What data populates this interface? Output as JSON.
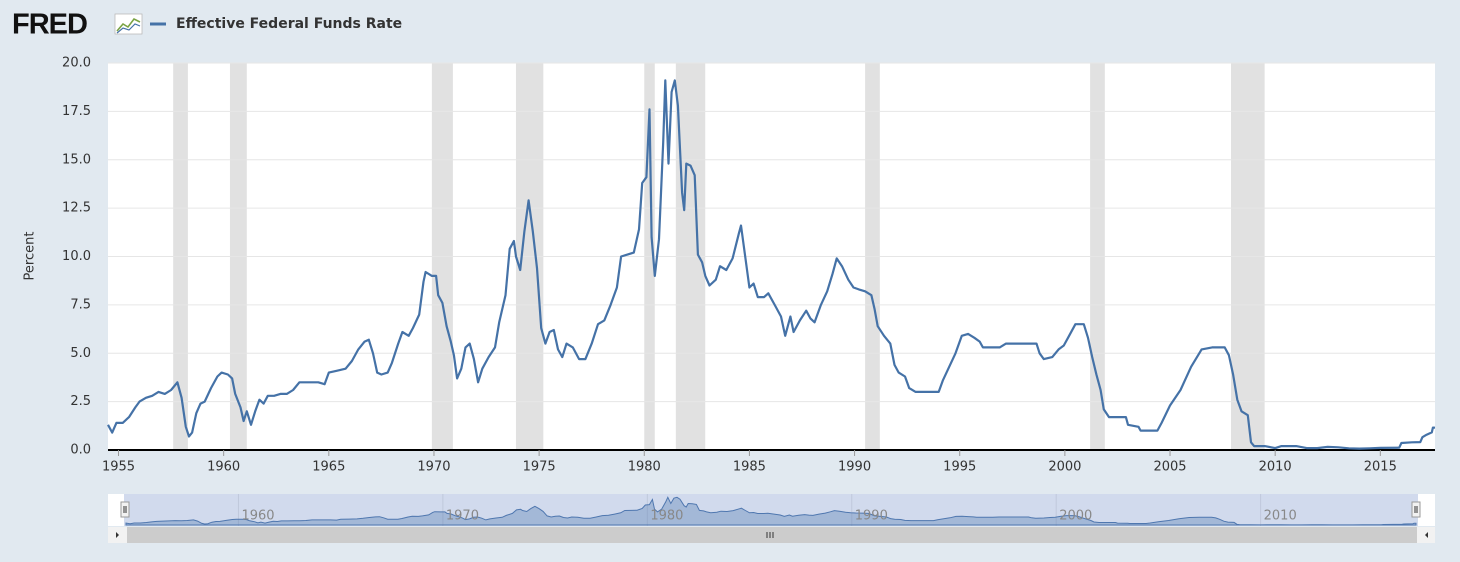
{
  "logo": "FRED",
  "chart_data": {
    "type": "line",
    "y_label": "Percent",
    "xlim": [
      1954.5,
      2017.6
    ],
    "ylim": [
      0,
      20
    ],
    "xticks": [
      1955,
      1960,
      1965,
      1970,
      1975,
      1980,
      1985,
      1990,
      1995,
      2000,
      2005,
      2010,
      2015
    ],
    "yticks": [
      {
        "value": 0,
        "label": "0.0"
      },
      2.5,
      {
        "value": 5,
        "label": "5.0"
      },
      7.5,
      {
        "value": 10,
        "label": "10.0"
      },
      12.5,
      {
        "value": 15,
        "label": "15.0"
      },
      17.5,
      {
        "value": 20,
        "label": "20.0"
      }
    ],
    "grid": true,
    "recession_color": "#e1e1e1",
    "recessions": [
      [
        1957.6,
        1958.3
      ],
      [
        1960.3,
        1961.1
      ],
      [
        1969.9,
        1970.9
      ],
      [
        1973.9,
        1975.2
      ],
      [
        1980.0,
        1980.5
      ],
      [
        1981.5,
        1982.9
      ],
      [
        1990.5,
        1991.2
      ],
      [
        2001.2,
        2001.9
      ],
      [
        2007.9,
        2009.5
      ]
    ],
    "navigator_xticks": [
      1960,
      1970,
      1980,
      1990,
      2000,
      2010
    ],
    "x": [
      1954.5,
      1954.7,
      1954.9,
      1955.2,
      1955.5,
      1955.8,
      1956.0,
      1956.3,
      1956.6,
      1956.9,
      1957.2,
      1957.5,
      1957.8,
      1958.0,
      1958.2,
      1958.35,
      1958.5,
      1958.7,
      1958.9,
      1959.1,
      1959.4,
      1959.7,
      1959.9,
      1960.2,
      1960.4,
      1960.55,
      1960.8,
      1960.95,
      1961.1,
      1961.3,
      1961.5,
      1961.7,
      1961.9,
      1962.1,
      1962.4,
      1962.7,
      1963.0,
      1963.3,
      1963.6,
      1963.9,
      1964.2,
      1964.5,
      1964.8,
      1965.0,
      1965.4,
      1965.8,
      1966.1,
      1966.4,
      1966.7,
      1966.9,
      1967.1,
      1967.3,
      1967.5,
      1967.8,
      1968.0,
      1968.3,
      1968.5,
      1968.8,
      1969.0,
      1969.3,
      1969.5,
      1969.6,
      1969.9,
      1970.1,
      1970.2,
      1970.4,
      1970.6,
      1970.8,
      1970.95,
      1971.1,
      1971.3,
      1971.5,
      1971.7,
      1971.9,
      1972.1,
      1972.3,
      1972.6,
      1972.9,
      1973.1,
      1973.4,
      1973.6,
      1973.8,
      1973.9,
      1974.1,
      1974.3,
      1974.5,
      1974.7,
      1974.9,
      1975.1,
      1975.3,
      1975.5,
      1975.7,
      1975.9,
      1976.1,
      1976.3,
      1976.6,
      1976.9,
      1977.2,
      1977.5,
      1977.8,
      1978.1,
      1978.4,
      1978.7,
      1978.9,
      1979.2,
      1979.5,
      1979.75,
      1979.9,
      1980.1,
      1980.25,
      1980.35,
      1980.5,
      1980.7,
      1980.9,
      1981.0,
      1981.15,
      1981.3,
      1981.45,
      1981.6,
      1981.8,
      1981.9,
      1982.0,
      1982.2,
      1982.4,
      1982.55,
      1982.75,
      1982.9,
      1983.1,
      1983.4,
      1983.6,
      1983.9,
      1984.2,
      1984.5,
      1984.6,
      1984.8,
      1985.0,
      1985.2,
      1985.4,
      1985.7,
      1985.9,
      1986.2,
      1986.5,
      1986.7,
      1986.95,
      1987.1,
      1987.4,
      1987.7,
      1987.9,
      1988.1,
      1988.4,
      1988.7,
      1988.95,
      1989.15,
      1989.4,
      1989.7,
      1989.95,
      1990.2,
      1990.5,
      1990.8,
      1990.95,
      1991.1,
      1991.4,
      1991.7,
      1991.9,
      1992.1,
      1992.4,
      1992.6,
      1992.9,
      1993.3,
      1993.7,
      1994.0,
      1994.2,
      1994.5,
      1994.8,
      1995.1,
      1995.4,
      1995.7,
      1995.95,
      1996.1,
      1996.5,
      1996.9,
      1997.2,
      1997.6,
      1997.9,
      1998.3,
      1998.65,
      1998.8,
      1999.0,
      1999.4,
      1999.7,
      1999.95,
      2000.2,
      2000.5,
      2000.9,
      2001.1,
      2001.3,
      2001.5,
      2001.7,
      2001.85,
      2002.1,
      2002.5,
      2002.9,
      2003.0,
      2003.5,
      2003.6,
      2004.4,
      2004.6,
      2005.0,
      2005.5,
      2006.0,
      2006.5,
      2007.0,
      2007.6,
      2007.8,
      2008.0,
      2008.2,
      2008.4,
      2008.7,
      2008.85,
      2009.0,
      2009.5,
      2010.0,
      2010.3,
      2011.0,
      2011.5,
      2012.0,
      2012.5,
      2013.0,
      2013.5,
      2014.0,
      2014.5,
      2015.0,
      2015.9,
      2016.0,
      2016.5,
      2016.9,
      2017.0,
      2017.2,
      2017.45,
      2017.5,
      2017.6
    ],
    "series": [
      {
        "name": "Effective Federal Funds Rate",
        "color": "#4572a7",
        "values": [
          1.3,
          0.9,
          1.4,
          1.4,
          1.7,
          2.2,
          2.5,
          2.7,
          2.8,
          3.0,
          2.9,
          3.1,
          3.5,
          2.7,
          1.2,
          0.7,
          0.9,
          1.9,
          2.4,
          2.5,
          3.2,
          3.8,
          4.0,
          3.9,
          3.7,
          2.9,
          2.2,
          1.5,
          2.0,
          1.3,
          2.0,
          2.6,
          2.4,
          2.8,
          2.8,
          2.9,
          2.9,
          3.1,
          3.5,
          3.5,
          3.5,
          3.5,
          3.4,
          4.0,
          4.1,
          4.2,
          4.6,
          5.2,
          5.6,
          5.7,
          5.0,
          4.0,
          3.9,
          4.0,
          4.5,
          5.5,
          6.1,
          5.9,
          6.3,
          7.0,
          8.7,
          9.2,
          9.0,
          9.0,
          8.0,
          7.6,
          6.4,
          5.6,
          4.9,
          3.7,
          4.2,
          5.3,
          5.5,
          4.7,
          3.5,
          4.2,
          4.8,
          5.3,
          6.6,
          8.0,
          10.4,
          10.8,
          10.0,
          9.3,
          11.3,
          12.9,
          11.3,
          9.4,
          6.3,
          5.5,
          6.1,
          6.2,
          5.2,
          4.8,
          5.5,
          5.3,
          4.7,
          4.7,
          5.5,
          6.5,
          6.7,
          7.5,
          8.4,
          10.0,
          10.1,
          10.2,
          11.4,
          13.8,
          14.1,
          17.6,
          11.0,
          9.0,
          10.9,
          15.9,
          19.1,
          14.8,
          18.5,
          19.1,
          17.8,
          13.3,
          12.4,
          14.8,
          14.7,
          14.2,
          10.1,
          9.7,
          9.0,
          8.5,
          8.8,
          9.5,
          9.3,
          9.9,
          11.2,
          11.6,
          10.0,
          8.4,
          8.6,
          7.9,
          7.9,
          8.1,
          7.5,
          6.9,
          5.9,
          6.9,
          6.1,
          6.7,
          7.2,
          6.8,
          6.6,
          7.5,
          8.2,
          9.1,
          9.9,
          9.5,
          8.8,
          8.4,
          8.3,
          8.2,
          8.0,
          7.3,
          6.4,
          5.9,
          5.5,
          4.4,
          4.0,
          3.8,
          3.2,
          3.0,
          3.0,
          3.0,
          3.0,
          3.6,
          4.3,
          5.0,
          5.9,
          6.0,
          5.8,
          5.6,
          5.3,
          5.3,
          5.3,
          5.5,
          5.5,
          5.5,
          5.5,
          5.5,
          5.0,
          4.7,
          4.8,
          5.2,
          5.4,
          5.9,
          6.5,
          6.5,
          5.8,
          4.8,
          3.9,
          3.1,
          2.1,
          1.7,
          1.7,
          1.7,
          1.3,
          1.2,
          1.0,
          1.0,
          1.4,
          2.3,
          3.1,
          4.3,
          5.2,
          5.3,
          5.3,
          4.9,
          3.9,
          2.6,
          2.0,
          1.8,
          0.4,
          0.2,
          0.2,
          0.1,
          0.2,
          0.2,
          0.1,
          0.1,
          0.16,
          0.14,
          0.09,
          0.07,
          0.09,
          0.11,
          0.12,
          0.36,
          0.4,
          0.41,
          0.66,
          0.79,
          0.91,
          1.16,
          1.15
        ]
      }
    ]
  }
}
